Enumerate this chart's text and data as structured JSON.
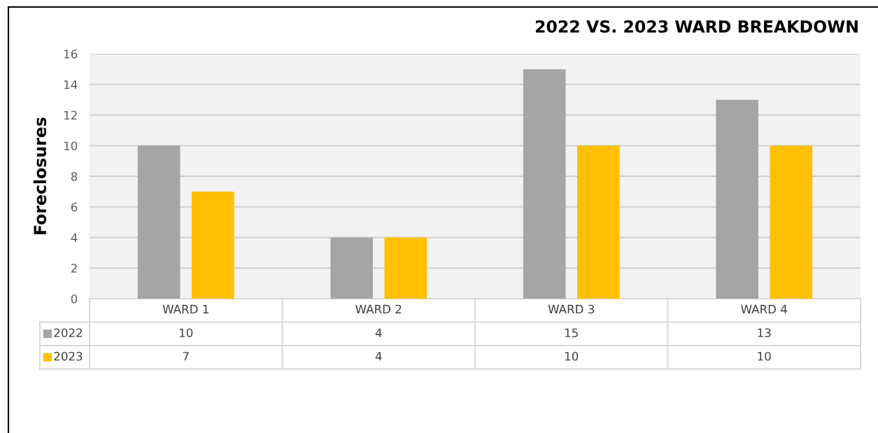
{
  "chart_data": {
    "type": "bar",
    "title": "2022 VS. 2023 WARD BREAKDOWN",
    "ylabel": "Foreclosures",
    "categories": [
      "WARD 1",
      "WARD 2",
      "WARD 3",
      "WARD 4"
    ],
    "series": [
      {
        "name": "2022",
        "color": "#a5a5a5",
        "values": [
          10,
          4,
          15,
          13
        ]
      },
      {
        "name": "2023",
        "color": "#ffc000",
        "values": [
          7,
          4,
          10,
          10
        ]
      }
    ],
    "ylim": [
      0,
      16
    ],
    "yticks": [
      0,
      2,
      4,
      6,
      8,
      10,
      12,
      14,
      16
    ],
    "grid": "y",
    "data_labels": true,
    "legend": "bottom left"
  }
}
